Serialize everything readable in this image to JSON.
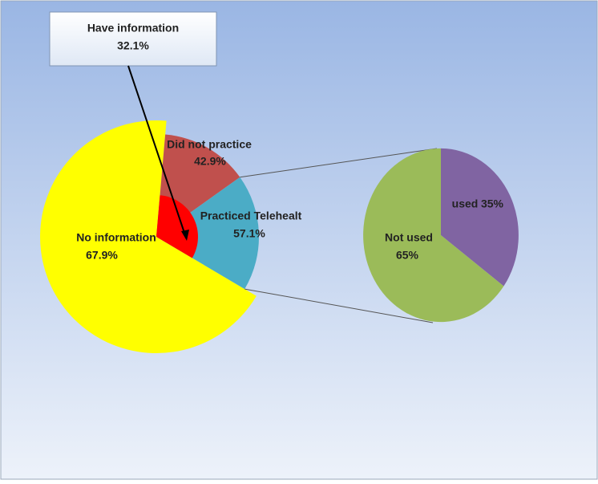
{
  "chart_data": {
    "type": "pie-of-pie",
    "main": {
      "categories": [
        "No information",
        "Have information"
      ],
      "values": [
        67.9,
        32.1
      ],
      "value_labels": [
        "67.9%",
        "32.1%"
      ],
      "colors": [
        "#ffff00",
        "#ff0000"
      ]
    },
    "split": {
      "categories": [
        "Did not practice",
        "Practiced Telehealt"
      ],
      "values": [
        42.9,
        57.1
      ],
      "value_labels": [
        "42.9%",
        "57.1%"
      ],
      "colors": [
        "#c0504d",
        "#4bacc6"
      ]
    },
    "secondary": {
      "categories": [
        "Not used",
        "used"
      ],
      "values": [
        65,
        35
      ],
      "value_labels": [
        "65%",
        "35%"
      ],
      "colors": [
        "#9bbb59",
        "#8064a2"
      ]
    }
  }
}
